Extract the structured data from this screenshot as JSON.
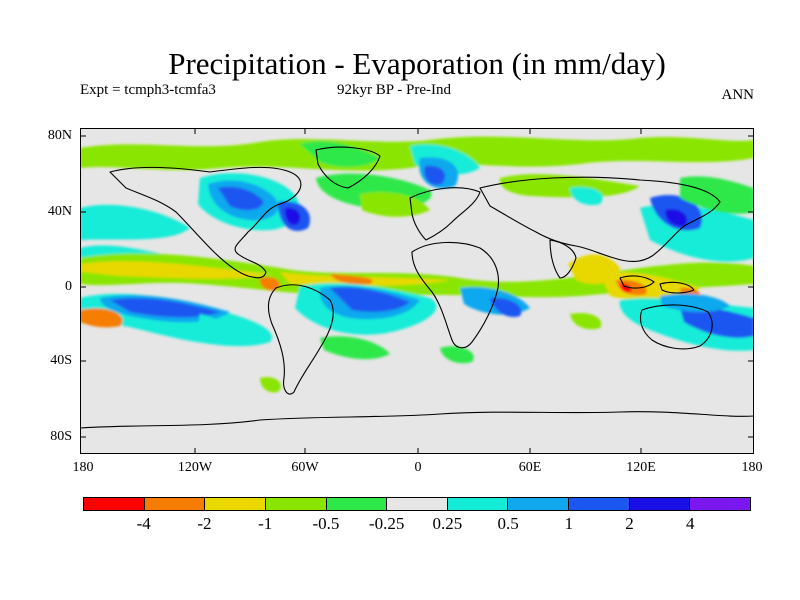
{
  "title": "Precipitation - Evaporation (in mm/day)",
  "experiment": "Expt = tcmph3-tcmfa3",
  "period": "92kyr BP - Pre-Ind",
  "season": "ANN",
  "lat_labels": [
    "80N",
    "40N",
    "0",
    "40S",
    "80S"
  ],
  "lon_labels": [
    "180",
    "120W",
    "60W",
    "0",
    "60E",
    "120E",
    "180"
  ],
  "colorbar": {
    "colors": [
      "#ff0000",
      "#f57d00",
      "#e8d800",
      "#8ae600",
      "#2ee84a",
      "#e6e6e6",
      "#14ecd8",
      "#11a8ee",
      "#1c56f0",
      "#1a10e6",
      "#7b18f0"
    ],
    "labels": [
      "-4",
      "-2",
      "-1",
      "-0.5",
      "-0.25",
      "0.25",
      "0.5",
      "1",
      "2",
      "4"
    ]
  },
  "colors": {
    "neutral": "#e6e6e6",
    "coastline": "#000000"
  }
}
